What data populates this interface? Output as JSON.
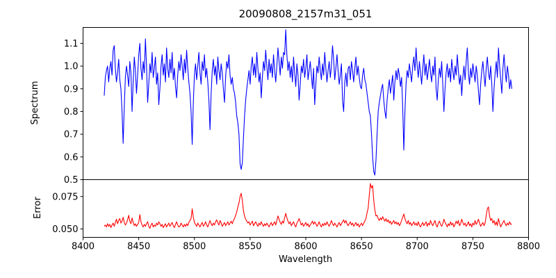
{
  "figure": {
    "title": "20090808_2157m31_051",
    "xlabel": "Wavelength",
    "background": "#ffffff",
    "spine_color": "#000000"
  },
  "chart_data": [
    {
      "type": "line",
      "panel": "spectrum",
      "ylabel": "Spectrum",
      "xlim": [
        8400,
        8800
      ],
      "ylim": [
        0.5,
        1.17
      ],
      "yticks": [
        0.5,
        0.6,
        0.7,
        0.8,
        0.9,
        1.0,
        1.1
      ],
      "ytick_labels": [
        "0.5",
        "0.6",
        "0.7",
        "0.8",
        "0.9",
        "1.0",
        "1.1"
      ],
      "xticks": [
        8400,
        8450,
        8500,
        8550,
        8600,
        8650,
        8700,
        8750,
        8800
      ],
      "xtick_labels": [
        "8400",
        "8450",
        "8500",
        "8550",
        "8600",
        "8650",
        "8700",
        "8750",
        "8800"
      ],
      "show_xticklabels": false,
      "grid": false,
      "legend": "none",
      "series": [
        {
          "name": "spectrum",
          "color": "#0000ff",
          "x0": 8419,
          "dx": 1,
          "y": [
            0.87,
            0.95,
            0.98,
            1.0,
            0.93,
            0.99,
            1.02,
            0.96,
            1.07,
            1.09,
            0.99,
            0.93,
            0.97,
            1.03,
            0.94,
            0.9,
            0.8,
            0.66,
            0.82,
            0.95,
            1.0,
            0.96,
            0.91,
            1.02,
            0.97,
            0.8,
            0.93,
            1.04,
            0.98,
            0.88,
            0.96,
            1.05,
            1.1,
            0.99,
            0.94,
            1.02,
            0.97,
            1.12,
            1.0,
            0.84,
            0.92,
            1.01,
            0.97,
            1.06,
            0.95,
            0.99,
            1.04,
            0.92,
            0.97,
            0.83,
            0.9,
            1.0,
            1.05,
            0.96,
            1.01,
            0.93,
            1.08,
            0.99,
            0.95,
            1.03,
            0.97,
            1.06,
            0.94,
            0.99,
            0.91,
            0.86,
            0.96,
            1.02,
            0.98,
            1.05,
            1.0,
            0.94,
            1.03,
            0.97,
            1.07,
            0.99,
            0.93,
            0.88,
            0.8,
            0.655,
            0.84,
            0.96,
            1.01,
            0.94,
            1.0,
            1.06,
            0.97,
            0.92,
            1.02,
            0.98,
            1.05,
            0.95,
            0.99,
            0.93,
            0.85,
            0.72,
            0.88,
            0.98,
            1.03,
            0.96,
            1.0,
            0.92,
            1.04,
            0.98,
            0.94,
            1.01,
            0.97,
            0.9,
            0.84,
            0.95,
            1.02,
            0.99,
            1.05,
            0.96,
            0.92,
            0.95,
            0.9,
            0.88,
            0.84,
            0.78,
            0.75,
            0.7,
            0.57,
            0.545,
            0.575,
            0.68,
            0.78,
            0.85,
            0.9,
            0.94,
            0.98,
            0.92,
            1.0,
            1.04,
            0.96,
            1.01,
            0.95,
            1.06,
            0.99,
            0.93,
            0.97,
            0.86,
            0.95,
            1.02,
            0.98,
            1.07,
            1.0,
            0.94,
            1.03,
            0.97,
            1.01,
            0.95,
            1.05,
            0.98,
            0.93,
            1.0,
            1.08,
            1.02,
            0.96,
            1.04,
            0.99,
            1.06,
            1.05,
            1.16,
            1.05,
            0.98,
            1.02,
            0.95,
            1.0,
            0.93,
            1.04,
            0.97,
            0.91,
            1.01,
            0.96,
            0.85,
            0.92,
            1.0,
            0.97,
            1.03,
            0.95,
            0.99,
            1.05,
            0.94,
            0.98,
            1.02,
            0.96,
            0.9,
            0.99,
            0.83,
            0.92,
            1.0,
            0.97,
            1.04,
            0.98,
            0.94,
            1.01,
            0.96,
            1.06,
            0.99,
            0.93,
            0.98,
            1.02,
            0.95,
            1.0,
            1.09,
            1.03,
            0.94,
            0.99,
            1.05,
            0.98,
            0.92,
            0.96,
            1.01,
            0.85,
            0.8,
            0.93,
            0.97,
            0.91,
            0.99,
            1.0,
            0.94,
            1.02,
            0.98,
            0.93,
            0.99,
            1.04,
            0.96,
            1.0,
            0.95,
            0.91,
            0.9,
            0.96,
            0.99,
            0.94,
            0.92,
            0.88,
            0.84,
            0.8,
            0.78,
            0.7,
            0.6,
            0.535,
            0.52,
            0.585,
            0.7,
            0.8,
            0.84,
            0.87,
            0.9,
            0.92,
            0.85,
            0.8,
            0.77,
            0.85,
            0.9,
            0.94,
            0.88,
            0.92,
            0.96,
            0.85,
            0.93,
            0.98,
            0.94,
            0.99,
            0.96,
            0.91,
            0.95,
            0.82,
            0.63,
            0.8,
            0.92,
            0.98,
            0.95,
            1.01,
            0.97,
            0.93,
            1.0,
            1.04,
            0.98,
            1.08,
            1.0,
            0.95,
            1.02,
            0.97,
            0.92,
            0.99,
            1.05,
            0.96,
            1.01,
            0.94,
            0.98,
            1.03,
            0.97,
            0.93,
            1.0,
            0.96,
            1.04,
            0.9,
            0.85,
            0.94,
            0.99,
            0.95,
            1.02,
            0.92,
            0.8,
            0.9,
            0.97,
            1.01,
            0.95,
            0.99,
            0.93,
            1.03,
            0.98,
            0.94,
            1.0,
            0.96,
            1.05,
            0.98,
            0.92,
            0.96,
            0.87,
            0.95,
            1.0,
            0.94,
            1.02,
            1.08,
            0.97,
            0.92,
            0.99,
            0.95,
            1.01,
            0.97,
            0.93,
            1.0,
            0.96,
            0.89,
            0.83,
            0.92,
            0.98,
            1.02,
            0.96,
            0.91,
            0.99,
            1.04,
            0.97,
            0.94,
            1.0,
            0.92,
            0.8,
            0.9,
            0.97,
            1.02,
            0.95,
            1.08,
            1.0,
            0.94,
            0.88,
            0.99,
            1.05,
            0.98,
            0.93,
            1.0,
            0.96,
            0.9,
            0.94,
            0.9
          ]
        }
      ]
    },
    {
      "type": "line",
      "panel": "error",
      "ylabel": "Error",
      "xlabel": "Wavelength",
      "xlim": [
        8400,
        8800
      ],
      "ylim": [
        0.0435,
        0.088
      ],
      "yticks": [
        0.05,
        0.075
      ],
      "ytick_labels": [
        "0.050",
        "0.075"
      ],
      "xticks": [
        8400,
        8450,
        8500,
        8550,
        8600,
        8650,
        8700,
        8750,
        8800
      ],
      "xtick_labels": [
        "8400",
        "8450",
        "8500",
        "8550",
        "8600",
        "8650",
        "8700",
        "8750",
        "8800"
      ],
      "show_xticklabels": true,
      "grid": false,
      "legend": "none",
      "series": [
        {
          "name": "error",
          "color": "#ff0000",
          "x0": 8419,
          "dx": 1,
          "y": [
            0.052,
            0.053,
            0.0515,
            0.054,
            0.052,
            0.0535,
            0.051,
            0.053,
            0.0545,
            0.052,
            0.055,
            0.0575,
            0.054,
            0.0565,
            0.058,
            0.0545,
            0.056,
            0.059,
            0.055,
            0.053,
            0.0545,
            0.057,
            0.0605,
            0.056,
            0.054,
            0.0585,
            0.055,
            0.0525,
            0.054,
            0.052,
            0.0535,
            0.055,
            0.061,
            0.0555,
            0.053,
            0.0515,
            0.0535,
            0.052,
            0.054,
            0.0555,
            0.052,
            0.0505,
            0.053,
            0.0545,
            0.0515,
            0.053,
            0.052,
            0.0545,
            0.053,
            0.0555,
            0.054,
            0.052,
            0.0535,
            0.051,
            0.0525,
            0.054,
            0.0515,
            0.053,
            0.0545,
            0.052,
            0.0535,
            0.055,
            0.0525,
            0.051,
            0.0535,
            0.0555,
            0.053,
            0.0515,
            0.052,
            0.0545,
            0.053,
            0.0515,
            0.0535,
            0.052,
            0.054,
            0.0525,
            0.055,
            0.0565,
            0.058,
            0.0655,
            0.059,
            0.055,
            0.0535,
            0.052,
            0.0545,
            0.053,
            0.0515,
            0.0535,
            0.055,
            0.052,
            0.0535,
            0.0555,
            0.053,
            0.0515,
            0.054,
            0.0565,
            0.054,
            0.0525,
            0.0545,
            0.053,
            0.0555,
            0.057,
            0.0545,
            0.053,
            0.0565,
            0.0545,
            0.052,
            0.0535,
            0.055,
            0.0525,
            0.054,
            0.0555,
            0.053,
            0.0545,
            0.056,
            0.054,
            0.0565,
            0.058,
            0.0605,
            0.063,
            0.067,
            0.07,
            0.075,
            0.0775,
            0.072,
            0.064,
            0.06,
            0.0575,
            0.056,
            0.0545,
            0.0555,
            0.053,
            0.0545,
            0.056,
            0.0525,
            0.054,
            0.0555,
            0.0535,
            0.052,
            0.0545,
            0.053,
            0.0555,
            0.0535,
            0.052,
            0.054,
            0.0525,
            0.0545,
            0.053,
            0.0515,
            0.0535,
            0.055,
            0.0525,
            0.054,
            0.0555,
            0.053,
            0.0565,
            0.06,
            0.0575,
            0.055,
            0.0535,
            0.056,
            0.0545,
            0.0585,
            0.062,
            0.0585,
            0.056,
            0.054,
            0.0555,
            0.0525,
            0.054,
            0.0555,
            0.053,
            0.0515,
            0.0545,
            0.056,
            0.058,
            0.0555,
            0.053,
            0.0545,
            0.052,
            0.0535,
            0.055,
            0.0525,
            0.054,
            0.0515,
            0.053,
            0.0545,
            0.056,
            0.0535,
            0.0555,
            0.054,
            0.052,
            0.0535,
            0.0555,
            0.053,
            0.0515,
            0.054,
            0.0525,
            0.0545,
            0.053,
            0.0555,
            0.0535,
            0.052,
            0.054,
            0.0565,
            0.054,
            0.0525,
            0.0545,
            0.053,
            0.0515,
            0.0535,
            0.055,
            0.0525,
            0.054,
            0.0555,
            0.057,
            0.0545,
            0.0565,
            0.054,
            0.0525,
            0.054,
            0.0555,
            0.053,
            0.0545,
            0.052,
            0.0535,
            0.055,
            0.0525,
            0.054,
            0.0515,
            0.053,
            0.0545,
            0.0525,
            0.0545,
            0.056,
            0.058,
            0.0625,
            0.066,
            0.076,
            0.085,
            0.0815,
            0.0835,
            0.072,
            0.0645,
            0.06,
            0.0605,
            0.058,
            0.0565,
            0.0585,
            0.057,
            0.0595,
            0.0575,
            0.056,
            0.058,
            0.0555,
            0.057,
            0.0545,
            0.056,
            0.0535,
            0.055,
            0.0565,
            0.054,
            0.0555,
            0.0535,
            0.055,
            0.0525,
            0.054,
            0.0565,
            0.059,
            0.0615,
            0.058,
            0.0555,
            0.054,
            0.0565,
            0.0535,
            0.055,
            0.0525,
            0.054,
            0.0555,
            0.053,
            0.0545,
            0.0525,
            0.0555,
            0.053,
            0.0515,
            0.0535,
            0.055,
            0.0525,
            0.054,
            0.0555,
            0.052,
            0.0545,
            0.053,
            0.0565,
            0.054,
            0.0525,
            0.0545,
            0.0565,
            0.053,
            0.0515,
            0.0545,
            0.056,
            0.0535,
            0.052,
            0.054,
            0.0575,
            0.055,
            0.0535,
            0.0515,
            0.054,
            0.0525,
            0.0555,
            0.053,
            0.0545,
            0.0515,
            0.0535,
            0.056,
            0.054,
            0.0565,
            0.0525,
            0.054,
            0.0575,
            0.055,
            0.053,
            0.0545,
            0.052,
            0.0535,
            0.0555,
            0.0525,
            0.054,
            0.0515,
            0.0545,
            0.053,
            0.0565,
            0.0535,
            0.055,
            0.0575,
            0.0545,
            0.052,
            0.0535,
            0.055,
            0.0525,
            0.0545,
            0.0605,
            0.0655,
            0.067,
            0.06,
            0.0565,
            0.058,
            0.0545,
            0.0565,
            0.053,
            0.0555,
            0.0525,
            0.058,
            0.0545,
            0.0515,
            0.0535,
            0.055,
            0.0565,
            0.054,
            0.0525,
            0.0545,
            0.053,
            0.0555,
            0.0535,
            0.054
          ]
        }
      ]
    }
  ]
}
